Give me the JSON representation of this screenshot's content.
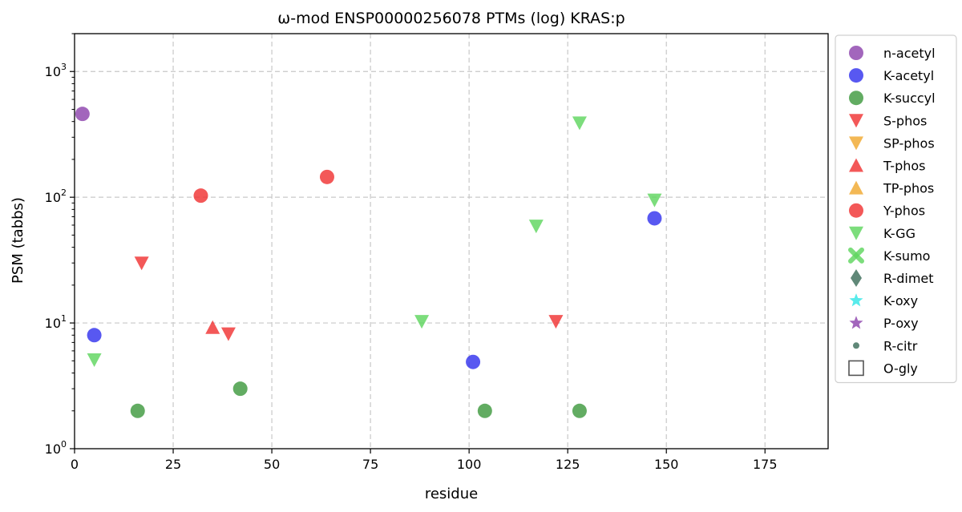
{
  "chart_data": {
    "type": "scatter",
    "title": "ω-mod ENSP00000256078 PTMs (log) KRAS:p",
    "xlabel": "residue",
    "ylabel": "PSM (tabbs)",
    "xlim": [
      0,
      191
    ],
    "ylim": [
      1,
      2000
    ],
    "yscale": "log",
    "grid": true,
    "legend_placement": "outside-right",
    "x_ticks": [
      0,
      25,
      50,
      75,
      100,
      125,
      150,
      175
    ],
    "y_ticks": [
      {
        "value": 1,
        "base": "10",
        "exp": "0"
      },
      {
        "value": 10,
        "base": "10",
        "exp": "1"
      },
      {
        "value": 100,
        "base": "10",
        "exp": "2"
      },
      {
        "value": 1000,
        "base": "10",
        "exp": "3"
      }
    ],
    "series": [
      {
        "name": "n-acetyl",
        "marker": "circle",
        "color": "#8e44ad",
        "points": [
          [
            2,
            460
          ]
        ]
      },
      {
        "name": "K-acetyl",
        "marker": "circle",
        "color": "#3333ee",
        "points": [
          [
            5,
            8
          ],
          [
            101,
            4.9
          ],
          [
            147,
            68
          ]
        ]
      },
      {
        "name": "K-succyl",
        "marker": "circle",
        "color": "#3f9a3f",
        "points": [
          [
            16,
            2
          ],
          [
            42,
            3
          ],
          [
            104,
            2
          ],
          [
            128,
            2
          ]
        ]
      },
      {
        "name": "S-phos",
        "marker": "triangle-down",
        "color": "#f03333",
        "points": [
          [
            17,
            30
          ],
          [
            39,
            8.2
          ],
          [
            122,
            10.3
          ]
        ]
      },
      {
        "name": "SP-phos",
        "marker": "triangle-down",
        "color": "#f0a830",
        "points": []
      },
      {
        "name": "T-phos",
        "marker": "triangle-up",
        "color": "#f03333",
        "points": [
          [
            35,
            9.2
          ]
        ]
      },
      {
        "name": "TP-phos",
        "marker": "triangle-up",
        "color": "#f0a830",
        "points": []
      },
      {
        "name": "Y-phos",
        "marker": "circle",
        "color": "#f03333",
        "points": [
          [
            32,
            103
          ],
          [
            64,
            145
          ]
        ]
      },
      {
        "name": "K-GG",
        "marker": "triangle-down",
        "color": "#5fd65f",
        "points": [
          [
            5,
            5.1
          ],
          [
            88,
            10.3
          ],
          [
            117,
            59
          ],
          [
            128,
            390
          ],
          [
            147,
            95
          ]
        ]
      },
      {
        "name": "K-sumo",
        "marker": "x",
        "color": "#5fd65f",
        "points": []
      },
      {
        "name": "R-dimet",
        "marker": "diamond",
        "color": "#3d6e5a",
        "points": []
      },
      {
        "name": "K-oxy",
        "marker": "star",
        "color": "#33e6e6",
        "points": []
      },
      {
        "name": "P-oxy",
        "marker": "star",
        "color": "#8e44ad",
        "points": []
      },
      {
        "name": "R-citr",
        "marker": "small-circle",
        "color": "#3d6e5a",
        "points": []
      },
      {
        "name": "O-gly",
        "marker": "square-open",
        "color": "#555555",
        "points": []
      }
    ]
  }
}
